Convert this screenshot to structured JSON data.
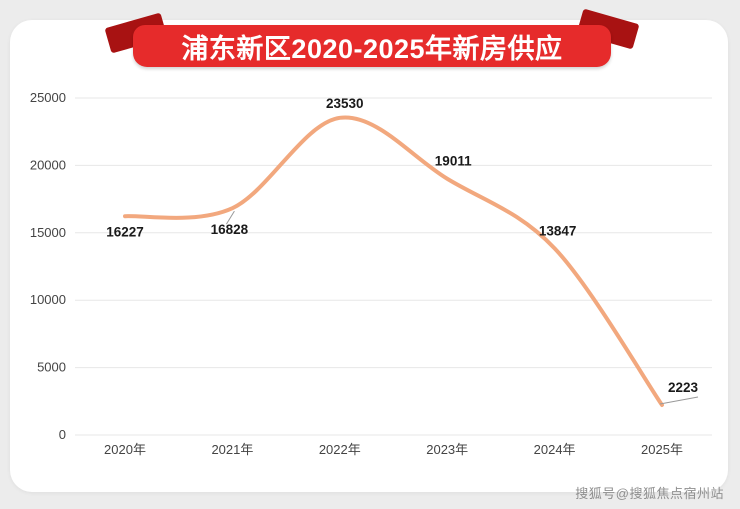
{
  "banner": {
    "title": "浦东新区2020-2025年新房供应",
    "bg_color": "#e62b2b",
    "fold_color": "#a81212"
  },
  "chart_data": {
    "type": "line",
    "title": "浦东新区2020-2025年新房供应",
    "categories": [
      "2020年",
      "2021年",
      "2022年",
      "2023年",
      "2024年",
      "2025年"
    ],
    "values": [
      16227,
      16828,
      23530,
      19011,
      13847,
      2223
    ],
    "yticks": [
      0,
      5000,
      10000,
      15000,
      20000,
      25000
    ],
    "ylim": [
      0,
      25000
    ],
    "xlabel": "",
    "ylabel": "",
    "line_color": "#f2a87e",
    "grid": true,
    "smooth": true,
    "legend": false
  },
  "watermark": "搜狐号@搜狐焦点宿州站"
}
